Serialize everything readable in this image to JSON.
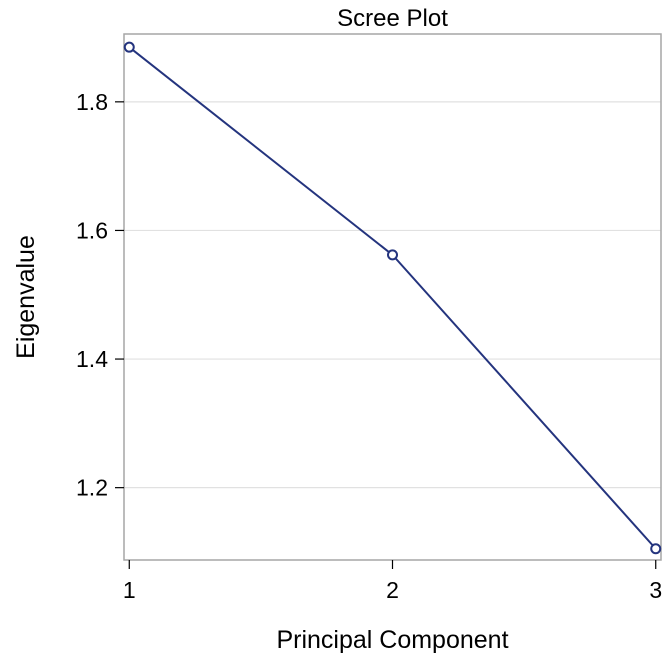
{
  "chart_data": {
    "type": "line",
    "title": "Scree Plot",
    "xlabel": "Principal Component",
    "ylabel": "Eigenvalue",
    "x": [
      1,
      2,
      3
    ],
    "series": [
      {
        "values": [
          1.885,
          1.562,
          1.105
        ]
      }
    ],
    "xticks": [
      "1",
      "2",
      "3"
    ],
    "yticks": [
      "1.2",
      "1.4",
      "1.6",
      "1.8"
    ],
    "ytick_values": [
      1.2,
      1.4,
      1.6,
      1.8
    ],
    "xlim": [
      0.98,
      3.02
    ],
    "ylim": [
      1.0875,
      1.9055
    ],
    "grid": "horizontal",
    "line_color": "#24347e",
    "marker": "open-circle",
    "frame_color": "#a6a6a6",
    "grid_color": "#e1e1e1"
  }
}
